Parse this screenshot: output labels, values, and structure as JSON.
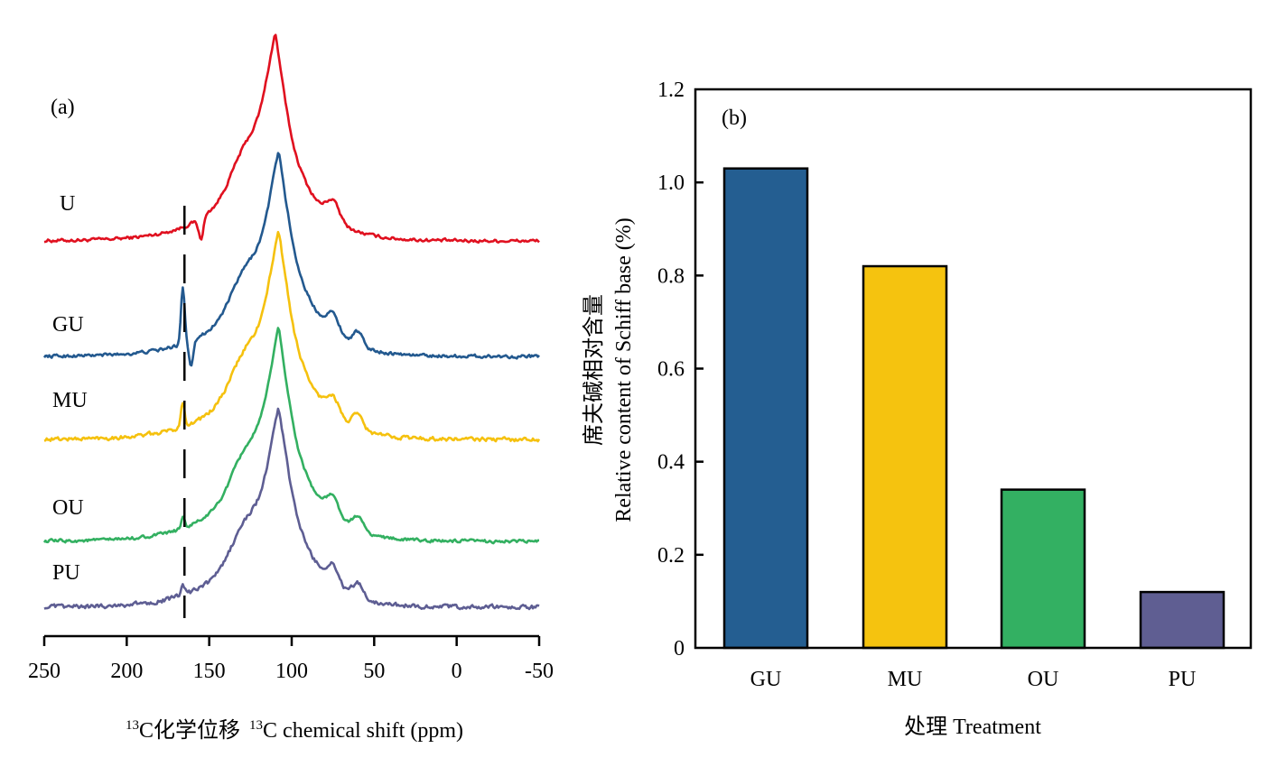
{
  "chart_data": [
    {
      "type": "line",
      "panel_label": "(a)",
      "title": "",
      "xlabel_sup": "13",
      "xlabel_cn": "C化学位移",
      "xlabel_en_sup": "13",
      "xlabel_en": "C chemical shift (ppm)",
      "xlim": [
        250,
        -50
      ],
      "xticks": [
        250,
        200,
        150,
        100,
        50,
        0,
        -50
      ],
      "xtick_labels": [
        "250",
        "200",
        "150",
        "100",
        "50",
        "0",
        "-50"
      ],
      "reference_line_ppm": 165,
      "reference_line_style": "dashed",
      "grid": false,
      "series": [
        {
          "name": "U",
          "color": "#e0101f",
          "peak_ppm": 110,
          "peak_height": 1.0,
          "shoulders_ppm": [
            165,
            130,
            75
          ],
          "baseline_offset": 0
        },
        {
          "name": "GU",
          "color": "#23598f",
          "peak_ppm": 108,
          "peak_height": 0.97,
          "shoulders_ppm": [
            165,
            130,
            75,
            60
          ],
          "baseline_offset": 1
        },
        {
          "name": "MU",
          "color": "#f5c10e",
          "peak_ppm": 108,
          "peak_height": 1.0,
          "shoulders_ppm": [
            165,
            130,
            75,
            60
          ],
          "baseline_offset": 2
        },
        {
          "name": "OU",
          "color": "#33b061",
          "peak_ppm": 108,
          "peak_height": 1.0,
          "shoulders_ppm": [
            165,
            130,
            75,
            60
          ],
          "baseline_offset": 3
        },
        {
          "name": "PU",
          "color": "#5e5e93",
          "peak_ppm": 108,
          "peak_height": 0.92,
          "shoulders_ppm": [
            165,
            130,
            75,
            60
          ],
          "baseline_offset": 4
        }
      ]
    },
    {
      "type": "bar",
      "panel_label": "(b)",
      "title": "",
      "categories": [
        "GU",
        "MU",
        "OU",
        "PU"
      ],
      "values": [
        1.03,
        0.82,
        0.34,
        0.12
      ],
      "colors": [
        "#245e91",
        "#f5c30f",
        "#33b062",
        "#5f5e92"
      ],
      "xlabel": "处理 Treatment",
      "ylabel_cn": "席夫碱相对含量",
      "ylabel_en": "Relative content of Schiff base (%)",
      "ylim": [
        0,
        1.2
      ],
      "yticks": [
        0,
        0.2,
        0.4,
        0.6,
        0.8,
        1.0,
        1.2
      ],
      "ytick_labels": [
        "0",
        "0.2",
        "0.4",
        "0.6",
        "0.8",
        "1.0",
        "1.2"
      ],
      "grid": false,
      "legend": "none"
    }
  ]
}
